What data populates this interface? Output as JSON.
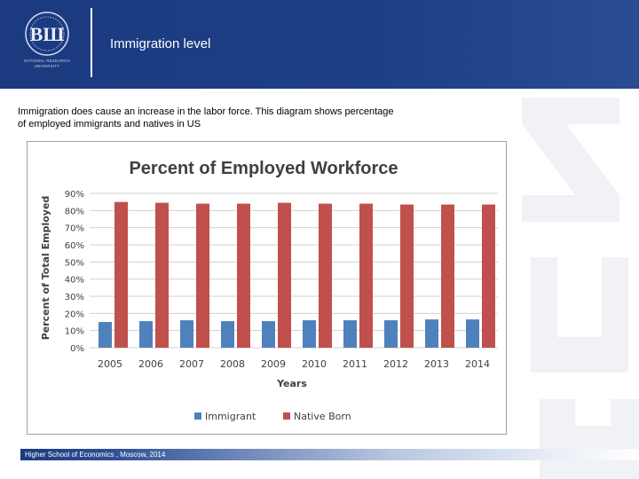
{
  "header": {
    "title": "Immigration level",
    "logo_caption": [
      "NATIONAL RESEARCH",
      "UNIVERSITY"
    ]
  },
  "intro": {
    "text_line1": "Immigration does cause an increase in the labor force. This diagram shows percentage",
    "text_line2": "of employed immigrants and natives in US"
  },
  "footer": {
    "text": "Higher School of Economics , Moscow, 2014"
  },
  "colors": {
    "header_blue": "#1b3a80",
    "immigrant": "#4f81bd",
    "native": "#c0504d"
  },
  "icons": {
    "logo": "hse-logo-icon",
    "watermark": "hse-watermark-icon"
  },
  "chart_data": {
    "type": "bar",
    "title": "Percent of Employed Workforce",
    "xlabel": "Years",
    "ylabel": "Percent of Total Employed",
    "categories": [
      "2005",
      "2006",
      "2007",
      "2008",
      "2009",
      "2010",
      "2011",
      "2012",
      "2013",
      "2014"
    ],
    "series": [
      {
        "name": "Immigrant",
        "values": [
          15,
          15.5,
          16,
          15.5,
          15.5,
          16,
          16,
          16,
          16.5,
          16.5
        ]
      },
      {
        "name": "Native Born",
        "values": [
          85,
          84.5,
          84,
          84,
          84.5,
          84,
          84,
          83.5,
          83.5,
          83.5
        ]
      }
    ],
    "ylim": [
      0,
      90
    ],
    "yticks": [
      0,
      10,
      20,
      30,
      40,
      50,
      60,
      70,
      80,
      90
    ],
    "ytick_labels": [
      "0%",
      "10%",
      "20%",
      "30%",
      "40%",
      "50%",
      "60%",
      "70%",
      "80%",
      "90%"
    ],
    "grid": true,
    "legend": "bottom"
  }
}
